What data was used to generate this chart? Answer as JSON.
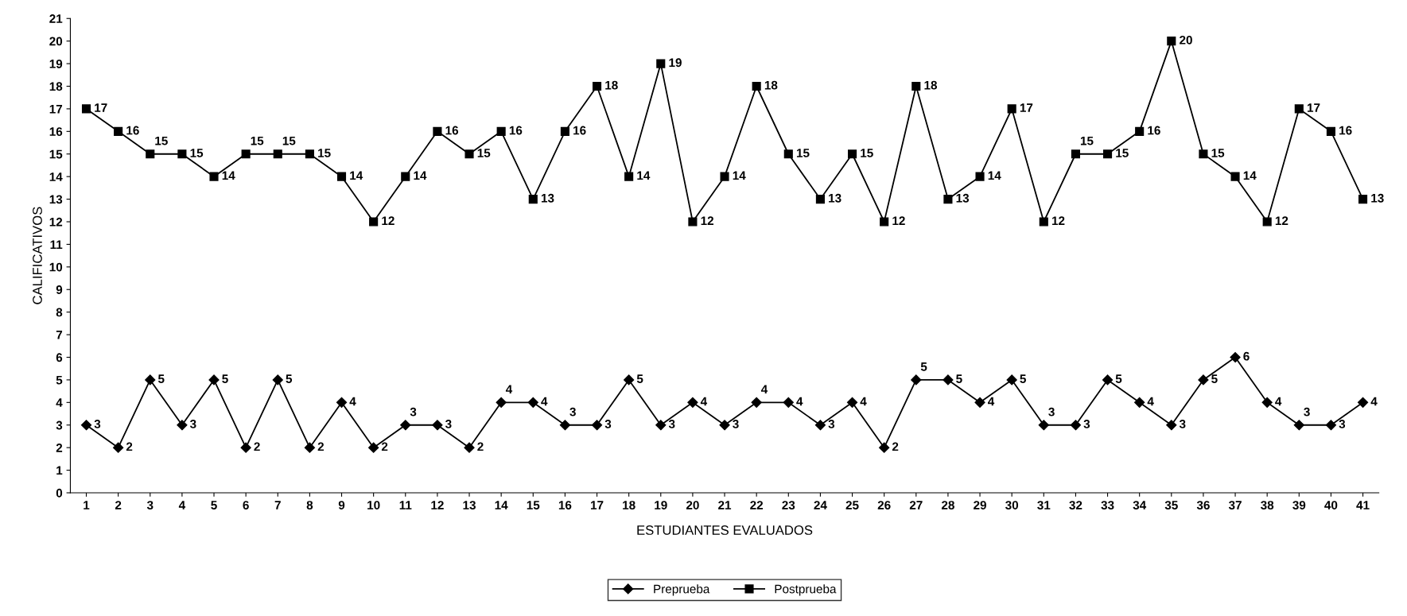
{
  "chart_data": {
    "type": "line",
    "xlabel": "ESTUDIANTES EVALUADOS",
    "ylabel": "CALIFICATIVOS",
    "categories": [
      "1",
      "2",
      "3",
      "4",
      "5",
      "6",
      "7",
      "8",
      "9",
      "10",
      "11",
      "12",
      "13",
      "14",
      "15",
      "16",
      "17",
      "18",
      "19",
      "20",
      "21",
      "22",
      "23",
      "24",
      "25",
      "26",
      "27",
      "28",
      "29",
      "30",
      "31",
      "32",
      "33",
      "34",
      "35",
      "36",
      "37",
      "38",
      "39",
      "40",
      "41"
    ],
    "series": [
      {
        "name": "Preprueba",
        "color": "#000000",
        "marker": "diamond",
        "values": [
          3,
          2,
          5,
          3,
          5,
          2,
          5,
          2,
          4,
          2,
          3,
          3,
          2,
          4,
          4,
          3,
          3,
          5,
          3,
          4,
          3,
          4,
          4,
          3,
          4,
          2,
          5,
          5,
          4,
          5,
          3,
          3,
          5,
          4,
          3,
          5,
          6,
          4,
          3,
          3,
          4
        ]
      },
      {
        "name": "Postprueba",
        "color": "#000000",
        "marker": "square",
        "values": [
          17,
          16,
          15,
          15,
          14,
          15,
          15,
          15,
          14,
          12,
          14,
          16,
          15,
          16,
          13,
          16,
          18,
          14,
          19,
          12,
          14,
          18,
          15,
          13,
          15,
          12,
          18,
          13,
          14,
          17,
          12,
          15,
          15,
          16,
          20,
          15,
          14,
          12,
          17,
          16,
          13
        ]
      }
    ],
    "ylim": [
      0,
      21
    ],
    "yticks": [
      0,
      1,
      2,
      3,
      4,
      5,
      6,
      7,
      8,
      9,
      10,
      11,
      12,
      13,
      14,
      15,
      16,
      17,
      18,
      19,
      20,
      21
    ],
    "data_labels": true,
    "legend": "bottom",
    "grid": false,
    "line_style": "solid"
  }
}
